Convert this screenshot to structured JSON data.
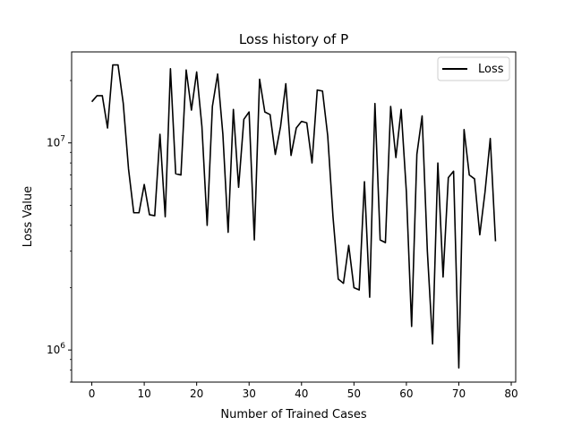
{
  "chart_data": {
    "type": "line",
    "title": "Loss history of P",
    "xlabel": "Number of Trained Cases",
    "ylabel": "Loss Value",
    "xlim": [
      -3.85,
      80.85
    ],
    "ylim": [
      700000,
      27500000
    ],
    "yscale": "log",
    "grid": false,
    "legend_position": "top-right",
    "x_ticks": [
      0,
      10,
      20,
      30,
      40,
      50,
      60,
      70,
      80
    ],
    "x_tick_labels": [
      "0",
      "10",
      "20",
      "30",
      "40",
      "50",
      "60",
      "70",
      "80"
    ],
    "y_ticks": [
      1000000,
      10000000
    ],
    "y_tick_labels": [
      {
        "base": "10",
        "exp": "6"
      },
      {
        "base": "10",
        "exp": "7"
      }
    ],
    "series": [
      {
        "name": "Loss",
        "color": "#000000",
        "x": [
          0,
          1,
          2,
          3,
          4,
          5,
          6,
          7,
          8,
          9,
          10,
          11,
          12,
          13,
          14,
          15,
          16,
          17,
          18,
          19,
          20,
          21,
          22,
          23,
          24,
          25,
          26,
          27,
          28,
          29,
          30,
          31,
          32,
          33,
          34,
          35,
          36,
          37,
          38,
          39,
          40,
          41,
          42,
          43,
          44,
          45,
          46,
          47,
          48,
          49,
          50,
          51,
          52,
          53,
          54,
          55,
          56,
          57,
          58,
          59,
          60,
          61,
          62,
          63,
          64,
          65,
          66,
          67,
          68,
          69,
          70,
          71,
          72,
          73,
          74,
          75,
          76,
          77
        ],
        "values": [
          15800000,
          16900000,
          16900000,
          11800000,
          23800000,
          23800000,
          15500000,
          7500000,
          4600000,
          4600000,
          6300000,
          4500000,
          4450000,
          11000000,
          4400000,
          22800000,
          7100000,
          7000000,
          22500000,
          14400000,
          22000000,
          12000000,
          4000000,
          15000000,
          21500000,
          11000000,
          3700000,
          14500000,
          6100000,
          13000000,
          14100000,
          3400000,
          20300000,
          14100000,
          13700000,
          8800000,
          12000000,
          19300000,
          8700000,
          11800000,
          12700000,
          12500000,
          8000000,
          18000000,
          17800000,
          10800000,
          4400000,
          2200000,
          2100000,
          3200000,
          2000000,
          1950000,
          6500000,
          1800000,
          15500000,
          3400000,
          3300000,
          15000000,
          8500000,
          14500000,
          5800000,
          1300000,
          8800000,
          13500000,
          3000000,
          1070000,
          8000000,
          2250000,
          6800000,
          7300000,
          820000,
          11600000,
          7000000,
          6700000,
          3600000,
          5800000,
          10500000,
          3350000
        ]
      }
    ]
  }
}
